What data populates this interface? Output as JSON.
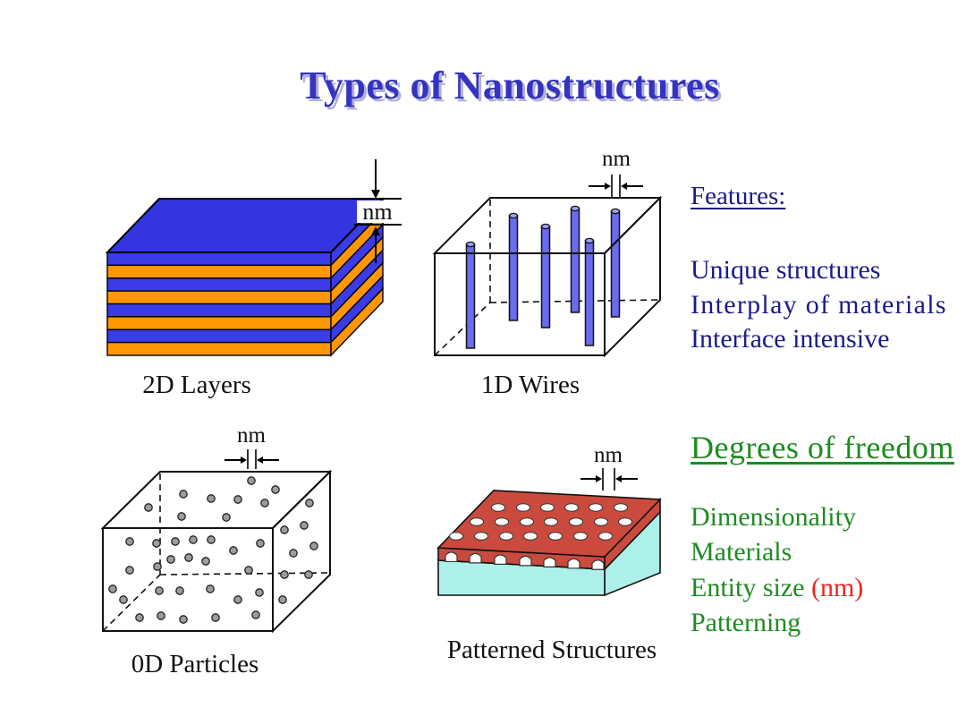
{
  "slide": {
    "title": "Types of Nanostructures"
  },
  "diagrams": {
    "layers": {
      "label": "2D Layers",
      "nm": "nm"
    },
    "wires": {
      "label": "1D Wires",
      "nm": "nm"
    },
    "particles": {
      "label": "0D Particles",
      "nm": "nm"
    },
    "patterned": {
      "label": "Patterned Structures",
      "nm": "nm"
    }
  },
  "features": {
    "heading": "Features:",
    "items": [
      "Unique structures",
      "Interplay of materials",
      "Interface intensive"
    ]
  },
  "degrees": {
    "heading": "Degrees of freedom",
    "items": [
      "Dimensionality",
      "Materials",
      "Entity size",
      "Patterning"
    ],
    "entity_size_unit": "(nm)"
  },
  "colors": {
    "title_blue": "#3434be",
    "navy_text": "#1b1b86",
    "green_text": "#1e8b22",
    "red_text": "#f02222",
    "layer_blue": "#3b3be8",
    "layer_orange": "#ff9705",
    "wire_blue": "#6b6bef",
    "particle_gray": "#9c9c9c",
    "pattern_red": "#cb4a3e",
    "pattern_cyan": "#adefe9"
  }
}
